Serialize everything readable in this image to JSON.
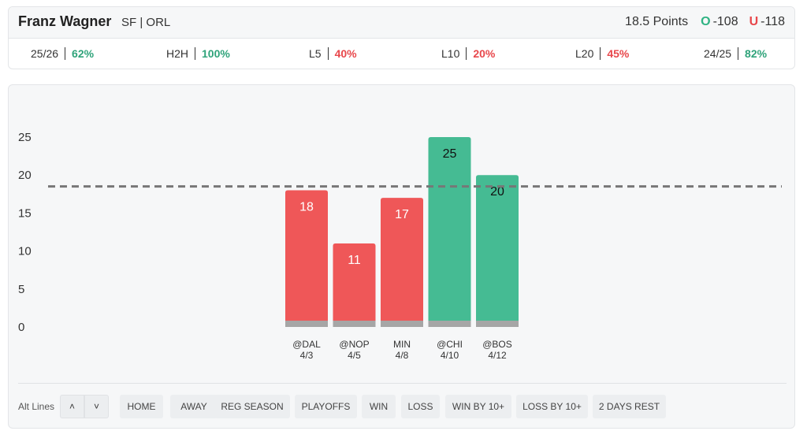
{
  "header": {
    "player_name": "Franz Wagner",
    "player_meta": "SF | ORL",
    "line_text": "18.5 Points",
    "over_mark": "O",
    "over_odds": "-108",
    "under_mark": "U",
    "under_odds": "-118"
  },
  "stats": [
    {
      "label": "25/26",
      "value": "62%",
      "color": "#2fa37a"
    },
    {
      "label": "H2H",
      "value": "100%",
      "color": "#2fa37a"
    },
    {
      "label": "L5",
      "value": "40%",
      "color": "#e8474b"
    },
    {
      "label": "L10",
      "value": "20%",
      "color": "#e8474b"
    },
    {
      "label": "L20",
      "value": "45%",
      "color": "#e8474b"
    },
    {
      "label": "24/25",
      "value": "82%",
      "color": "#2fa37a"
    }
  ],
  "chart_data": {
    "type": "bar",
    "categories": [
      "@DAL",
      "@NOP",
      "MIN",
      "@CHI",
      "@BOS"
    ],
    "dates": [
      "4/3",
      "4/5",
      "4/8",
      "4/10",
      "4/12"
    ],
    "values": [
      18,
      11,
      17,
      25,
      20
    ],
    "line_value": 18.5,
    "yticks": [
      0,
      5,
      10,
      15,
      20,
      25
    ],
    "ylim": [
      0,
      25
    ],
    "grid": false,
    "colors": {
      "under": "#ef5758",
      "over": "#45bb93",
      "base": "#a6a6a6",
      "line": "#777777"
    }
  },
  "filters": {
    "alt_lines_label": "Alt Lines",
    "up_icon": "chevron-up-icon",
    "down_icon": "chevron-down-icon",
    "buttons": [
      "HOME",
      "AWAY",
      "REG SEASON",
      "PLAYOFFS",
      "WIN",
      "LOSS",
      "WIN BY 10+",
      "LOSS BY 10+",
      "2 DAYS REST"
    ]
  }
}
